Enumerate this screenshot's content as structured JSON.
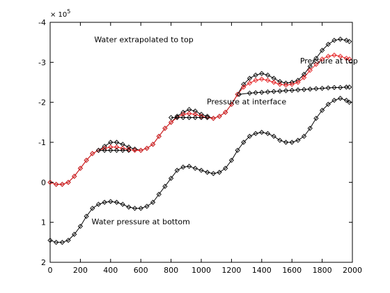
{
  "chart_data": {
    "type": "line",
    "title": "",
    "xlabel": "",
    "ylabel": "",
    "xlim": [
      0,
      2000
    ],
    "ylim": [
      2,
      -4
    ],
    "y_inverted": true,
    "y_scale_label": "× 10",
    "y_scale_exponent": "5",
    "grid": false,
    "xticks": [
      0,
      200,
      400,
      600,
      800,
      1000,
      1200,
      1400,
      1600,
      1800,
      2000
    ],
    "xtick_labels": [
      "0",
      "200",
      "400",
      "600",
      "800",
      "1000",
      "1200",
      "1400",
      "1600",
      "1800",
      "2000"
    ],
    "yticks": [
      -4,
      -3,
      -2,
      -1,
      0,
      1,
      2
    ],
    "ytick_labels": [
      "-4",
      "-3",
      "-2",
      "-1",
      "0",
      "1",
      "2"
    ],
    "annotations": [
      {
        "text": "Water extrapolated to top",
        "x": 620,
        "y": -3.5
      },
      {
        "text": "Pressure at top",
        "x": 1845,
        "y": -2.97
      },
      {
        "text": "Pressure at interface",
        "x": 1300,
        "y": -1.95
      },
      {
        "text": "Water pressure at bottom",
        "x": 600,
        "y": 1.05
      }
    ],
    "series": [
      {
        "color": "#000000",
        "marker": "diamond",
        "x": [
          0,
          40,
          80,
          120,
          160,
          200,
          240,
          280,
          320,
          360,
          400,
          440,
          480,
          520,
          560,
          600,
          640,
          680,
          720,
          760,
          800,
          840,
          880,
          920,
          960,
          1000,
          1040,
          1080,
          1120,
          1160,
          1200,
          1240,
          1280,
          1320,
          1360,
          1400,
          1440,
          1480,
          1520,
          1560,
          1600,
          1640,
          1680,
          1720,
          1760,
          1800,
          1840,
          1880,
          1920,
          1960,
          1980
        ],
        "y": [
          1.45,
          1.5,
          1.5,
          1.45,
          1.3,
          1.1,
          0.85,
          0.65,
          0.55,
          0.5,
          0.48,
          0.5,
          0.55,
          0.62,
          0.65,
          0.65,
          0.6,
          0.5,
          0.3,
          0.1,
          -0.1,
          -0.3,
          -0.38,
          -0.4,
          -0.35,
          -0.3,
          -0.25,
          -0.22,
          -0.25,
          -0.35,
          -0.55,
          -0.8,
          -1.0,
          -1.15,
          -1.22,
          -1.25,
          -1.22,
          -1.15,
          -1.05,
          -1.0,
          -1.0,
          -1.05,
          -1.15,
          -1.35,
          -1.6,
          -1.8,
          -1.95,
          -2.05,
          -2.1,
          -2.05,
          -2.0
        ]
      },
      {
        "color": "#000000",
        "marker": "diamond",
        "x": [
          0,
          40,
          80,
          120,
          160,
          200,
          240,
          280,
          320,
          360,
          400,
          440,
          480,
          520,
          560,
          600,
          640,
          680,
          720,
          760,
          800,
          840,
          880,
          920,
          960,
          1000,
          1040,
          1080,
          1120,
          1160,
          1200,
          1240,
          1280,
          1320,
          1360,
          1400,
          1440,
          1480,
          1520,
          1560,
          1600,
          1640,
          1680,
          1720,
          1760,
          1800,
          1840,
          1880,
          1920,
          1960,
          1980
        ],
        "y": [
          0.0,
          0.05,
          0.05,
          0.0,
          -0.15,
          -0.35,
          -0.55,
          -0.72,
          -0.8,
          -0.9,
          -1.0,
          -1.0,
          -0.95,
          -0.88,
          -0.83,
          -0.8,
          -0.85,
          -0.95,
          -1.15,
          -1.35,
          -1.5,
          -1.65,
          -1.75,
          -1.82,
          -1.78,
          -1.7,
          -1.65,
          -1.6,
          -1.65,
          -1.75,
          -1.95,
          -2.2,
          -2.45,
          -2.6,
          -2.68,
          -2.72,
          -2.68,
          -2.6,
          -2.52,
          -2.48,
          -2.5,
          -2.55,
          -2.7,
          -2.9,
          -3.1,
          -3.3,
          -3.45,
          -3.55,
          -3.58,
          -3.55,
          -3.52
        ]
      },
      {
        "color": "#e41a1c",
        "marker": "diamond",
        "x": [
          0,
          40,
          80,
          120,
          160,
          200,
          240,
          280,
          320,
          360,
          400,
          440,
          480,
          520,
          560,
          600,
          640,
          680,
          720,
          760,
          800,
          840,
          880,
          920,
          960,
          1000,
          1040,
          1080,
          1120,
          1160,
          1200,
          1240,
          1280,
          1320,
          1360,
          1400,
          1440,
          1480,
          1520,
          1560,
          1600,
          1640,
          1680,
          1720,
          1760,
          1800,
          1840,
          1880,
          1920,
          1960,
          1980
        ],
        "y": [
          0.0,
          0.05,
          0.05,
          0.0,
          -0.15,
          -0.35,
          -0.55,
          -0.72,
          -0.8,
          -0.85,
          -0.88,
          -0.88,
          -0.85,
          -0.82,
          -0.8,
          -0.8,
          -0.85,
          -0.95,
          -1.15,
          -1.35,
          -1.5,
          -1.62,
          -1.7,
          -1.72,
          -1.7,
          -1.65,
          -1.62,
          -1.6,
          -1.65,
          -1.75,
          -1.95,
          -2.2,
          -2.38,
          -2.48,
          -2.55,
          -2.58,
          -2.55,
          -2.5,
          -2.45,
          -2.43,
          -2.45,
          -2.5,
          -2.62,
          -2.8,
          -2.95,
          -3.08,
          -3.15,
          -3.18,
          -3.15,
          -3.1,
          -3.08
        ]
      },
      {
        "color": "#000000",
        "marker": "diamond",
        "x": [
          320,
          360,
          400,
          440,
          480,
          520
        ],
        "y": [
          -0.8,
          -0.8,
          -0.8,
          -0.8,
          -0.8,
          -0.8
        ]
      },
      {
        "color": "#000000",
        "marker": "diamond",
        "x": [
          800,
          840,
          880,
          920,
          960,
          1000,
          1040
        ],
        "y": [
          -1.62,
          -1.62,
          -1.62,
          -1.62,
          -1.62,
          -1.62,
          -1.62
        ]
      },
      {
        "color": "#000000",
        "marker": "diamond",
        "x": [
          1250,
          1320,
          1360,
          1400,
          1440,
          1480,
          1520,
          1560,
          1600,
          1640,
          1680,
          1720,
          1760,
          1800,
          1840,
          1880,
          1920,
          1960,
          1980
        ],
        "y": [
          -2.2,
          -2.23,
          -2.24,
          -2.25,
          -2.26,
          -2.27,
          -2.28,
          -2.29,
          -2.3,
          -2.31,
          -2.32,
          -2.33,
          -2.34,
          -2.35,
          -2.36,
          -2.37,
          -2.37,
          -2.38,
          -2.38
        ]
      }
    ]
  }
}
